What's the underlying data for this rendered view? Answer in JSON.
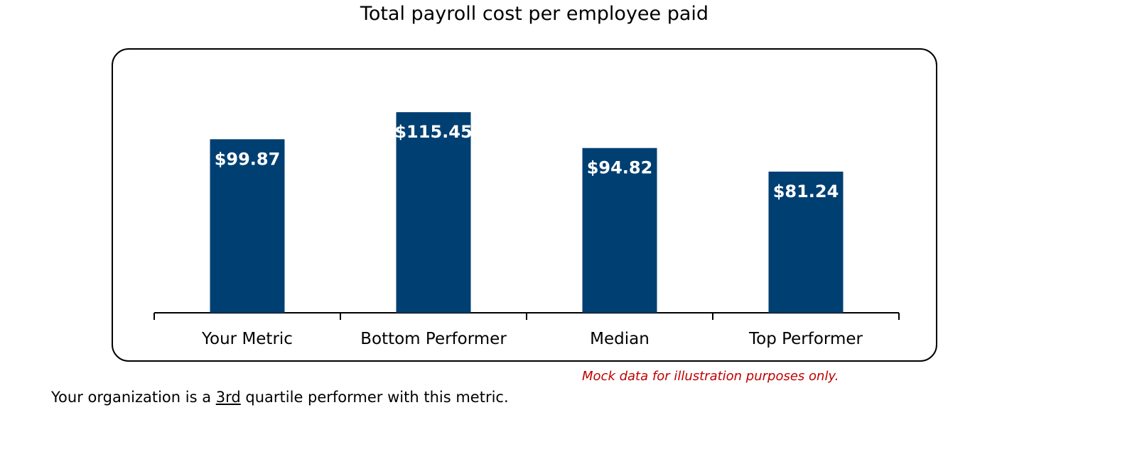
{
  "chart_data": {
    "type": "bar",
    "title": "Total payroll cost per employee paid",
    "categories": [
      "Your Metric",
      "Bottom Performer",
      "Median",
      "Top Performer"
    ],
    "values": [
      99.87,
      115.45,
      94.82,
      81.24
    ],
    "value_labels": [
      "$99.87",
      "$115.45",
      "$94.82",
      "$81.24"
    ],
    "xlabel": "",
    "ylabel": "",
    "ylim": [
      0,
      140
    ],
    "grid": false,
    "bar_color": "#003f72"
  },
  "footer": {
    "disclaimer": "Mock data for illustration purposes only.",
    "summary_prefix": "Your organization is a ",
    "summary_quartile": "3rd",
    "summary_suffix": " quartile performer with this metric."
  }
}
